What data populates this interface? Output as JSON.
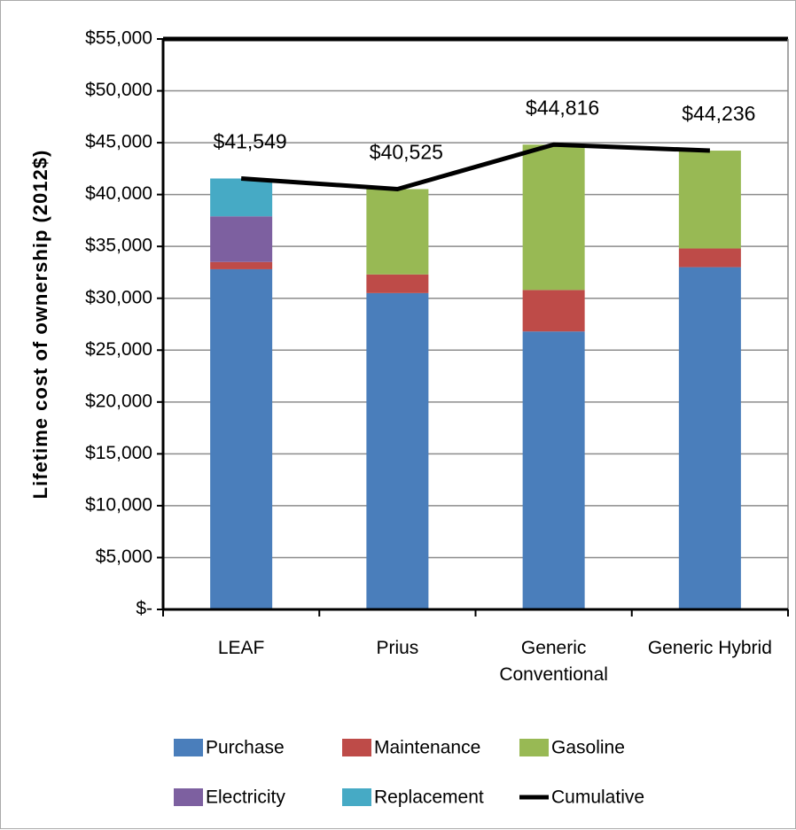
{
  "chart_data": {
    "type": "bar",
    "stacked": true,
    "y_label": "Lifetime cost of ownership (2012$)",
    "categories": [
      "LEAF",
      "Prius",
      "Generic Conventional",
      "Generic Hybrid"
    ],
    "series": [
      {
        "name": "Purchase",
        "color": "#4a7ebb",
        "values": [
          32800,
          30500,
          26800,
          33000
        ]
      },
      {
        "name": "Maintenance",
        "color": "#be4b48",
        "values": [
          700,
          1800,
          4000,
          1800
        ]
      },
      {
        "name": "Gasoline",
        "color": "#98b954",
        "values": [
          0,
          8225,
          14016,
          9436
        ]
      },
      {
        "name": "Electricity",
        "color": "#7d60a0",
        "values": [
          4400,
          0,
          0,
          0
        ]
      },
      {
        "name": "Replacement",
        "color": "#46aac5",
        "values": [
          3649,
          0,
          0,
          0
        ]
      },
      {
        "name": "Cumulative",
        "type": "line",
        "color": "#000000",
        "values": [
          41549,
          40525,
          44816,
          44236
        ],
        "value_labels": [
          "$41,549",
          "$40,525",
          "$44,816",
          "$44,236"
        ]
      }
    ],
    "ylim": [
      0,
      55000
    ],
    "yticks": [
      {
        "value": 0,
        "label": "$-"
      },
      {
        "value": 5000,
        "label": "$5,000"
      },
      {
        "value": 10000,
        "label": "$10,000"
      },
      {
        "value": 15000,
        "label": "$15,000"
      },
      {
        "value": 20000,
        "label": "$20,000"
      },
      {
        "value": 25000,
        "label": "$25,000"
      },
      {
        "value": 30000,
        "label": "$30,000"
      },
      {
        "value": 35000,
        "label": "$35,000"
      },
      {
        "value": 40000,
        "label": "$40,000"
      },
      {
        "value": 45000,
        "label": "$45,000"
      },
      {
        "value": 50000,
        "label": "$50,000"
      },
      {
        "value": 55000,
        "label": "$55,000"
      }
    ],
    "grid": true,
    "legend": "bottom"
  }
}
